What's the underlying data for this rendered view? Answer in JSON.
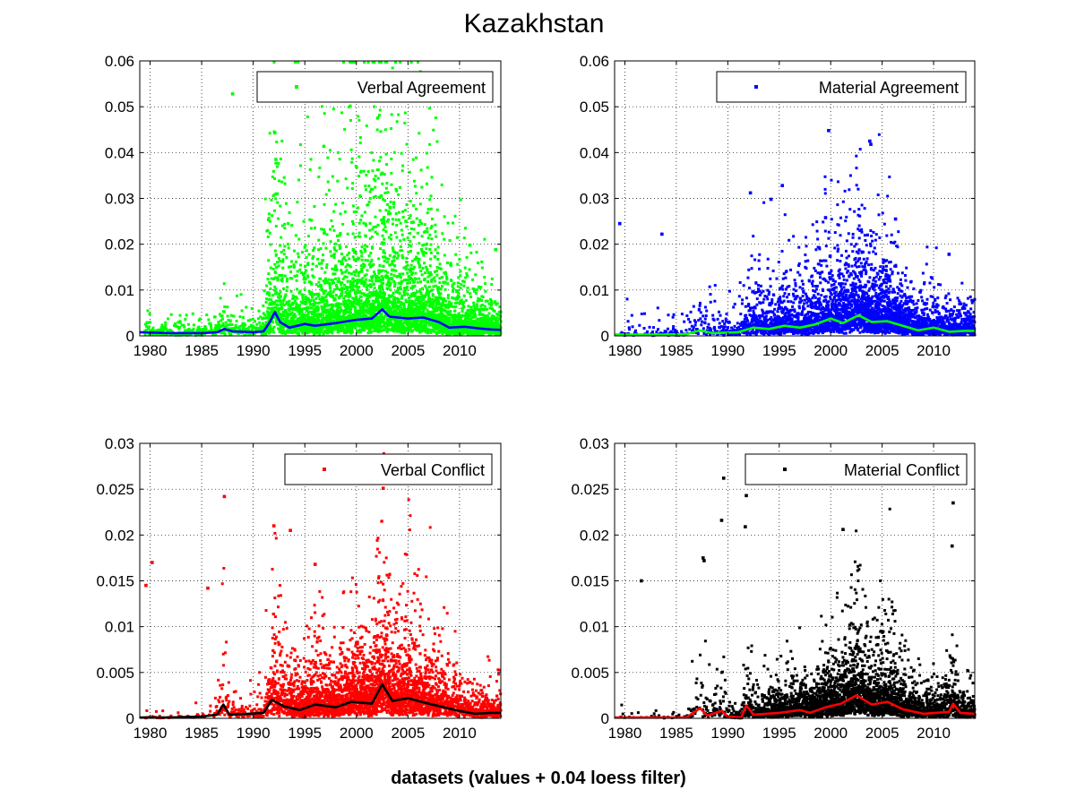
{
  "figure": {
    "title": "Kazakhstan",
    "xlabel": "datasets (values + 0.04 loess filter)"
  },
  "chart_data": [
    {
      "type": "scatter",
      "legend": "Verbal Agreement",
      "legend_position": "top-right",
      "grid": true,
      "xlim": [
        1979,
        2014
      ],
      "ylim": [
        0,
        0.06
      ],
      "xticks": [
        1980,
        1985,
        1990,
        1995,
        2000,
        2005,
        2010
      ],
      "yticks": [
        0,
        0.01,
        0.02,
        0.03,
        0.04,
        0.05,
        0.06
      ],
      "ytick_labels": [
        "0",
        "0.01",
        "0.02",
        "0.03",
        "0.04",
        "0.05",
        "0.06"
      ],
      "point_color": "#00ff00",
      "smooth_color": "#0000ff",
      "outliers": [
        [
          1988.0,
          0.0528
        ],
        [
          1992.1,
          0.0443
        ],
        [
          1992.2,
          0.0385
        ],
        [
          2002.5,
          0.0355
        ],
        [
          2002.4,
          0.0305
        ],
        [
          1992.3,
          0.031
        ],
        [
          2004.8,
          0.025
        ],
        [
          2005.5,
          0.0248
        ],
        [
          2011.0,
          0.0198
        ],
        [
          2013.5,
          0.0188
        ]
      ],
      "smooth": [
        [
          1979,
          0.0008
        ],
        [
          1982,
          0.0006
        ],
        [
          1985,
          0.0006
        ],
        [
          1986.5,
          0.0008
        ],
        [
          1987.2,
          0.0015
        ],
        [
          1988,
          0.001
        ],
        [
          1990,
          0.0008
        ],
        [
          1991,
          0.001
        ],
        [
          1991.6,
          0.003
        ],
        [
          1992.1,
          0.0052
        ],
        [
          1992.6,
          0.003
        ],
        [
          1993.5,
          0.0018
        ],
        [
          1995,
          0.0026
        ],
        [
          1996,
          0.0022
        ],
        [
          1998,
          0.0028
        ],
        [
          2000,
          0.0035
        ],
        [
          2001.5,
          0.0038
        ],
        [
          2002.5,
          0.0058
        ],
        [
          2003.2,
          0.0042
        ],
        [
          2005,
          0.0038
        ],
        [
          2006.5,
          0.004
        ],
        [
          2008,
          0.003
        ],
        [
          2009,
          0.0018
        ],
        [
          2010.5,
          0.002
        ],
        [
          2012,
          0.0016
        ],
        [
          2013,
          0.0014
        ],
        [
          2014,
          0.0013
        ]
      ]
    },
    {
      "type": "scatter",
      "legend": "Material Agreement",
      "legend_position": "top-right",
      "grid": true,
      "xlim": [
        1979,
        2014
      ],
      "ylim": [
        0,
        0.06
      ],
      "xticks": [
        1980,
        1985,
        1990,
        1995,
        2000,
        2005,
        2010
      ],
      "yticks": [
        0,
        0.01,
        0.02,
        0.03,
        0.04,
        0.05,
        0.06
      ],
      "ytick_labels": [
        "0",
        "0.01",
        "0.02",
        "0.03",
        "0.04",
        "0.05",
        "0.06"
      ],
      "point_color": "#0000ff",
      "smooth_color": "#00ff00",
      "outliers": [
        [
          1999.8,
          0.0448
        ],
        [
          2003.8,
          0.0425
        ],
        [
          2003.9,
          0.0418
        ],
        [
          1995.3,
          0.0328
        ],
        [
          1994.2,
          0.0298
        ],
        [
          1992.2,
          0.0312
        ],
        [
          1999.5,
          0.0258
        ],
        [
          2006.3,
          0.0255
        ],
        [
          1979.5,
          0.0245
        ],
        [
          1983.6,
          0.0222
        ],
        [
          2011.5,
          0.0178
        ]
      ],
      "smooth": [
        [
          1979,
          0.0003
        ],
        [
          1984,
          0.0003
        ],
        [
          1986,
          0.0004
        ],
        [
          1987.3,
          0.0012
        ],
        [
          1988.5,
          0.0006
        ],
        [
          1991,
          0.0008
        ],
        [
          1992.5,
          0.0018
        ],
        [
          1994,
          0.0015
        ],
        [
          1995.5,
          0.0022
        ],
        [
          1997,
          0.0018
        ],
        [
          1998.5,
          0.0025
        ],
        [
          2000,
          0.0038
        ],
        [
          2001.2,
          0.0028
        ],
        [
          2002.7,
          0.0045
        ],
        [
          2004,
          0.003
        ],
        [
          2005.5,
          0.0032
        ],
        [
          2007,
          0.0022
        ],
        [
          2008.5,
          0.0012
        ],
        [
          2010,
          0.0018
        ],
        [
          2011.5,
          0.0009
        ],
        [
          2013,
          0.0011
        ],
        [
          2014,
          0.0011
        ]
      ]
    },
    {
      "type": "scatter",
      "legend": "Verbal Conflict",
      "legend_position": "top-right",
      "grid": true,
      "xlim": [
        1979,
        2014
      ],
      "ylim": [
        0,
        0.03
      ],
      "xticks": [
        1980,
        1985,
        1990,
        1995,
        2000,
        2005,
        2010
      ],
      "yticks": [
        0,
        0.005,
        0.01,
        0.015,
        0.02,
        0.025,
        0.03
      ],
      "ytick_labels": [
        "0",
        "0.005",
        "0.01",
        "0.015",
        "0.02",
        "0.025",
        "0.03"
      ],
      "point_color": "#ff0000",
      "smooth_color": "#000000",
      "outliers": [
        [
          1987.2,
          0.0242
        ],
        [
          2002.6,
          0.0251
        ],
        [
          1992.0,
          0.021
        ],
        [
          1993.6,
          0.0205
        ],
        [
          1980.2,
          0.017
        ],
        [
          1979.6,
          0.0145
        ],
        [
          1985.6,
          0.0142
        ],
        [
          1996.0,
          0.0168
        ]
      ],
      "smooth": [
        [
          1979,
          0.0001
        ],
        [
          1982,
          0.0001
        ],
        [
          1985,
          0.0002
        ],
        [
          1986.5,
          0.0004
        ],
        [
          1987.1,
          0.0015
        ],
        [
          1987.7,
          0.0004
        ],
        [
          1989.5,
          0.0005
        ],
        [
          1991,
          0.0006
        ],
        [
          1991.8,
          0.002
        ],
        [
          1993,
          0.0013
        ],
        [
          1994.5,
          0.0009
        ],
        [
          1996,
          0.0015
        ],
        [
          1998,
          0.0012
        ],
        [
          1999.5,
          0.0018
        ],
        [
          2001.5,
          0.0016
        ],
        [
          2002.5,
          0.0037
        ],
        [
          2003.5,
          0.0019
        ],
        [
          2005,
          0.0022
        ],
        [
          2007,
          0.0016
        ],
        [
          2008.5,
          0.0012
        ],
        [
          2010,
          0.0008
        ],
        [
          2011.5,
          0.0005
        ],
        [
          2013,
          0.0006
        ],
        [
          2014,
          0.0006
        ]
      ]
    },
    {
      "type": "scatter",
      "legend": "Material Conflict",
      "legend_position": "top-right",
      "grid": true,
      "xlim": [
        1979,
        2014
      ],
      "ylim": [
        0,
        0.03
      ],
      "xticks": [
        1980,
        1985,
        1990,
        1995,
        2000,
        2005,
        2010
      ],
      "yticks": [
        0,
        0.005,
        0.01,
        0.015,
        0.02,
        0.025,
        0.03
      ],
      "ytick_labels": [
        "0",
        "0.005",
        "0.01",
        "0.015",
        "0.02",
        "0.025",
        "0.03"
      ],
      "point_color": "#000000",
      "smooth_color": "#ff0000",
      "outliers": [
        [
          1989.6,
          0.0262
        ],
        [
          1991.8,
          0.0243
        ],
        [
          1989.4,
          0.0216
        ],
        [
          1991.7,
          0.0209
        ],
        [
          2001.2,
          0.0206
        ],
        [
          2011.9,
          0.0235
        ],
        [
          2011.8,
          0.0188
        ],
        [
          1981.6,
          0.015
        ],
        [
          1987.6,
          0.0175
        ],
        [
          1987.7,
          0.0172
        ]
      ],
      "smooth": [
        [
          1979,
          0.0001
        ],
        [
          1986,
          0.0001
        ],
        [
          1987.3,
          0.0011
        ],
        [
          1988,
          0.0003
        ],
        [
          1989.4,
          0.0008
        ],
        [
          1990,
          0.0002
        ],
        [
          1991.3,
          0.0001
        ],
        [
          1991.8,
          0.0014
        ],
        [
          1992.5,
          0.0004
        ],
        [
          1995,
          0.0006
        ],
        [
          1997,
          0.0009
        ],
        [
          1998,
          0.0006
        ],
        [
          1999.5,
          0.0012
        ],
        [
          2001,
          0.0016
        ],
        [
          2002.5,
          0.0025
        ],
        [
          2004,
          0.0015
        ],
        [
          2005.5,
          0.0018
        ],
        [
          2007,
          0.001
        ],
        [
          2009,
          0.0005
        ],
        [
          2011.5,
          0.0007
        ],
        [
          2011.9,
          0.0016
        ],
        [
          2012.6,
          0.0006
        ],
        [
          2014,
          0.0005
        ]
      ]
    }
  ]
}
